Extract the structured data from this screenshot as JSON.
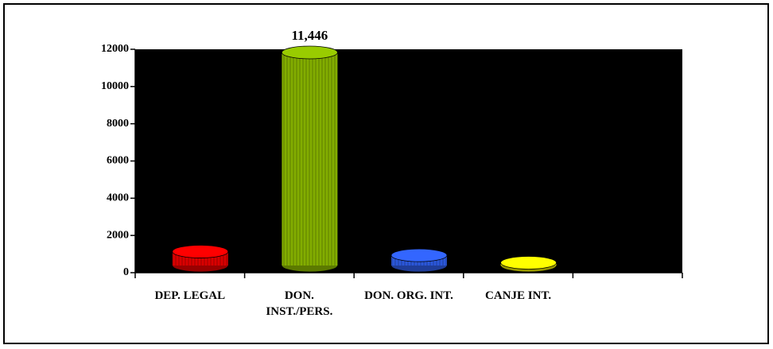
{
  "chart_data": {
    "type": "bar",
    "categories": [
      "DEP. LEGAL",
      "DON. INST./PERS.",
      "DON. ORG. INT.",
      "CANJE INT.",
      null
    ],
    "values": [
      750,
      11446,
      550,
      150,
      null
    ],
    "value_labels": [
      null,
      "11,446",
      null,
      null,
      null
    ],
    "colors": [
      "#ff0000",
      "#99cc00",
      "#3366ff",
      "#ffff00",
      null
    ],
    "ylim": [
      0,
      12000
    ],
    "yticks": [
      0,
      2000,
      4000,
      6000,
      8000,
      10000,
      12000
    ],
    "plot_background": "#000000"
  }
}
